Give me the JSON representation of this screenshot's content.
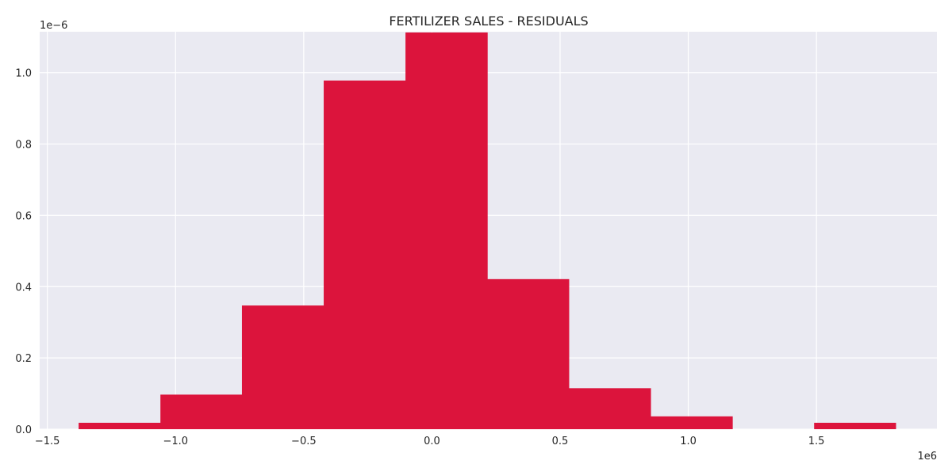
{
  "chart_data": {
    "type": "bar",
    "subtype": "histogram",
    "title": "FERTILIZER SALES - RESIDUALS",
    "xlabel": "",
    "ylabel": "",
    "x_offset_label": "1e6",
    "y_offset_label": "1e−6",
    "xlim": [
      -1.53,
      1.97
    ],
    "ylim": [
      0,
      1.115
    ],
    "xticks": [
      -1.5,
      -1.0,
      -0.5,
      0.0,
      0.5,
      1.0,
      1.5
    ],
    "xtick_labels": [
      "−1.5",
      "−1.0",
      "−0.5",
      "0.0",
      "0.5",
      "1.0",
      "1.5"
    ],
    "yticks": [
      0.0,
      0.2,
      0.4,
      0.6,
      0.8,
      1.0
    ],
    "ytick_labels": [
      "0.0",
      "0.2",
      "0.4",
      "0.6",
      "0.8",
      "1.0"
    ],
    "bins": [
      {
        "x0": -1.378,
        "x1": -1.059,
        "value": 0.018
      },
      {
        "x0": -1.059,
        "x1": -0.741,
        "value": 0.097
      },
      {
        "x0": -0.741,
        "x1": -0.422,
        "value": 0.347
      },
      {
        "x0": -0.422,
        "x1": -0.103,
        "value": 0.978
      },
      {
        "x0": -0.103,
        "x1": 0.216,
        "value": 1.113
      },
      {
        "x0": 0.216,
        "x1": 0.534,
        "value": 0.421
      },
      {
        "x0": 0.534,
        "x1": 0.853,
        "value": 0.115
      },
      {
        "x0": 0.853,
        "x1": 1.172,
        "value": 0.036
      },
      {
        "x0": 1.172,
        "x1": 1.491,
        "value": 0.0
      },
      {
        "x0": 1.491,
        "x1": 1.809,
        "value": 0.018
      }
    ],
    "bar_color": "#dc143c",
    "background_color": "#eaeaf2",
    "grid": true
  }
}
